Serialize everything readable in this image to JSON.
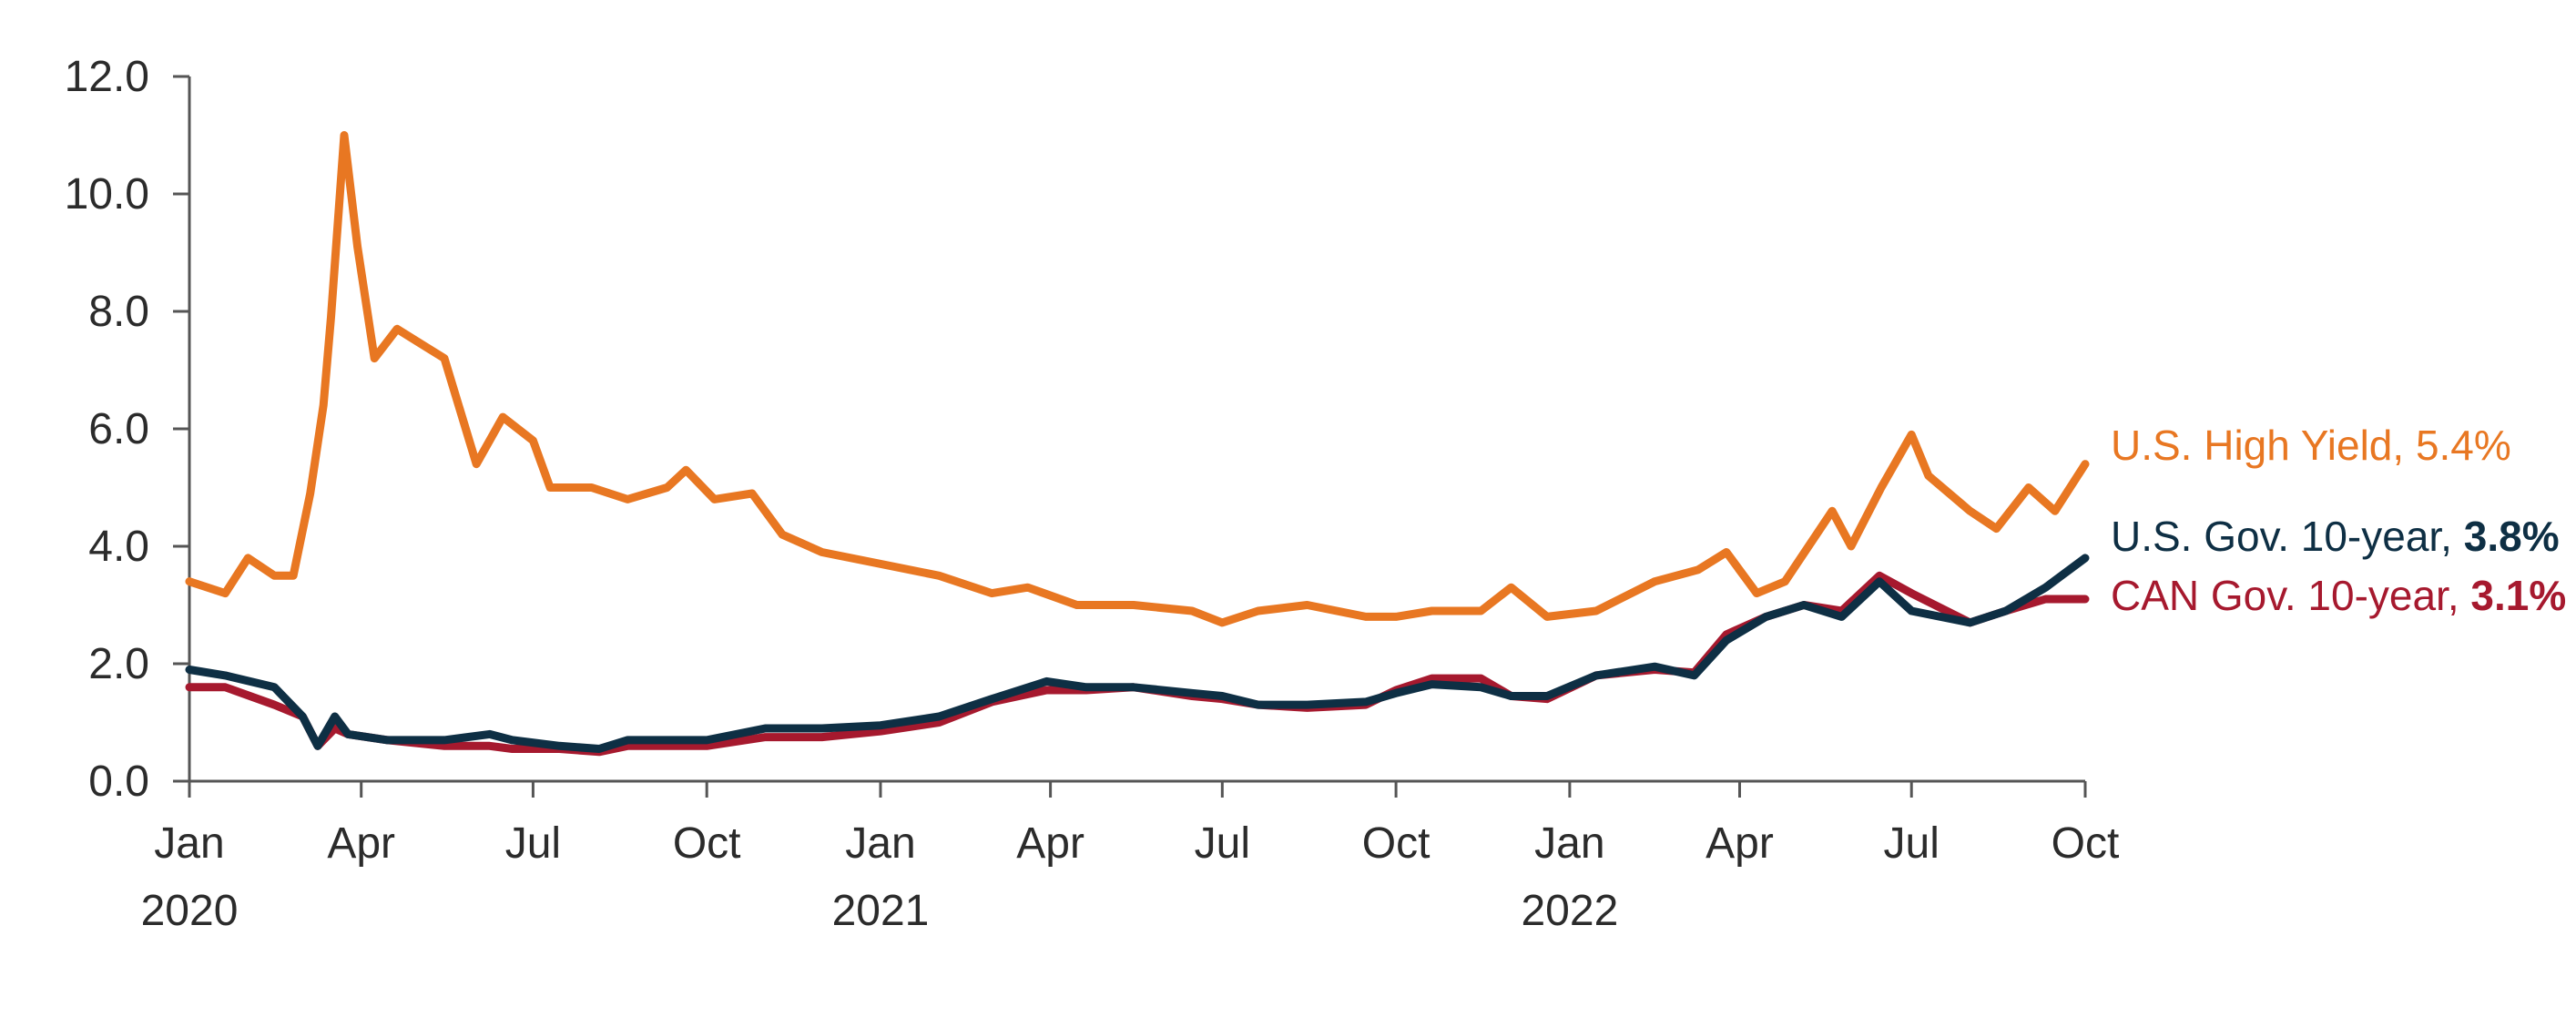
{
  "chart_data": {
    "type": "line",
    "title": "",
    "xlabel": "",
    "ylabel": "",
    "ylim": [
      0,
      12
    ],
    "y_ticks": [
      "0.0",
      "2.0",
      "4.0",
      "6.0",
      "8.0",
      "10.0",
      "12.0"
    ],
    "x_range": [
      "2020-01-01",
      "2022-10-01"
    ],
    "x_ticks": [
      {
        "date": "2020-01-01",
        "label": "Jan",
        "year": "2020"
      },
      {
        "date": "2020-04-01",
        "label": "Apr",
        "year": ""
      },
      {
        "date": "2020-07-01",
        "label": "Jul",
        "year": ""
      },
      {
        "date": "2020-10-01",
        "label": "Oct",
        "year": ""
      },
      {
        "date": "2021-01-01",
        "label": "Jan",
        "year": "2021"
      },
      {
        "date": "2021-04-01",
        "label": "Apr",
        "year": ""
      },
      {
        "date": "2021-07-01",
        "label": "Jul",
        "year": ""
      },
      {
        "date": "2021-10-01",
        "label": "Oct",
        "year": ""
      },
      {
        "date": "2022-01-01",
        "label": "Jan",
        "year": "2022"
      },
      {
        "date": "2022-04-01",
        "label": "Apr",
        "year": ""
      },
      {
        "date": "2022-07-01",
        "label": "Jul",
        "year": ""
      },
      {
        "date": "2022-10-01",
        "label": "Oct",
        "year": ""
      }
    ],
    "grid": false,
    "legend": "inline-right",
    "series": [
      {
        "name": "U.S. High Yield",
        "label_text": "U.S. High Yield, ",
        "last_value": "5.4%",
        "color": "#e87722",
        "points": [
          [
            "2020-01-01",
            3.4
          ],
          [
            "2020-01-20",
            3.2
          ],
          [
            "2020-02-01",
            3.8
          ],
          [
            "2020-02-15",
            3.5
          ],
          [
            "2020-02-25",
            3.5
          ],
          [
            "2020-03-05",
            4.9
          ],
          [
            "2020-03-12",
            6.4
          ],
          [
            "2020-03-16",
            7.9
          ],
          [
            "2020-03-23",
            11.0
          ],
          [
            "2020-03-30",
            9.1
          ],
          [
            "2020-04-08",
            7.2
          ],
          [
            "2020-04-20",
            7.7
          ],
          [
            "2020-05-05",
            7.4
          ],
          [
            "2020-05-15",
            7.2
          ],
          [
            "2020-06-01",
            5.4
          ],
          [
            "2020-06-15",
            6.2
          ],
          [
            "2020-07-01",
            5.8
          ],
          [
            "2020-07-10",
            5.0
          ],
          [
            "2020-08-01",
            5.0
          ],
          [
            "2020-08-20",
            4.8
          ],
          [
            "2020-09-10",
            5.0
          ],
          [
            "2020-09-20",
            5.3
          ],
          [
            "2020-10-05",
            4.8
          ],
          [
            "2020-10-25",
            4.9
          ],
          [
            "2020-11-10",
            4.2
          ],
          [
            "2020-12-01",
            3.9
          ],
          [
            "2021-01-01",
            3.7
          ],
          [
            "2021-02-01",
            3.5
          ],
          [
            "2021-03-01",
            3.2
          ],
          [
            "2021-03-20",
            3.3
          ],
          [
            "2021-04-15",
            3.0
          ],
          [
            "2021-05-15",
            3.0
          ],
          [
            "2021-06-15",
            2.9
          ],
          [
            "2021-07-01",
            2.7
          ],
          [
            "2021-07-20",
            2.9
          ],
          [
            "2021-08-15",
            3.0
          ],
          [
            "2021-09-15",
            2.8
          ],
          [
            "2021-10-01",
            2.8
          ],
          [
            "2021-10-20",
            2.9
          ],
          [
            "2021-11-15",
            2.9
          ],
          [
            "2021-12-01",
            3.3
          ],
          [
            "2021-12-20",
            2.8
          ],
          [
            "2022-01-15",
            2.9
          ],
          [
            "2022-02-15",
            3.4
          ],
          [
            "2022-03-10",
            3.6
          ],
          [
            "2022-03-25",
            3.9
          ],
          [
            "2022-04-10",
            3.2
          ],
          [
            "2022-04-25",
            3.4
          ],
          [
            "2022-05-20",
            4.6
          ],
          [
            "2022-05-30",
            4.0
          ],
          [
            "2022-06-15",
            5.0
          ],
          [
            "2022-07-01",
            5.9
          ],
          [
            "2022-07-10",
            5.2
          ],
          [
            "2022-08-01",
            4.6
          ],
          [
            "2022-08-15",
            4.3
          ],
          [
            "2022-09-01",
            5.0
          ],
          [
            "2022-09-15",
            4.6
          ],
          [
            "2022-10-01",
            5.4
          ]
        ]
      },
      {
        "name": "U.S. Gov. 10-year",
        "label_text": "U.S. Gov. 10-year, ",
        "last_value": "3.8%",
        "color": "#0e2f44",
        "points": [
          [
            "2020-01-01",
            1.9
          ],
          [
            "2020-01-20",
            1.8
          ],
          [
            "2020-02-15",
            1.6
          ],
          [
            "2020-03-01",
            1.1
          ],
          [
            "2020-03-09",
            0.6
          ],
          [
            "2020-03-18",
            1.1
          ],
          [
            "2020-03-25",
            0.8
          ],
          [
            "2020-04-15",
            0.7
          ],
          [
            "2020-05-15",
            0.7
          ],
          [
            "2020-06-08",
            0.8
          ],
          [
            "2020-06-20",
            0.7
          ],
          [
            "2020-07-15",
            0.6
          ],
          [
            "2020-08-05",
            0.55
          ],
          [
            "2020-08-20",
            0.7
          ],
          [
            "2020-09-15",
            0.7
          ],
          [
            "2020-10-01",
            0.7
          ],
          [
            "2020-11-01",
            0.9
          ],
          [
            "2020-12-01",
            0.9
          ],
          [
            "2021-01-01",
            0.95
          ],
          [
            "2021-02-01",
            1.1
          ],
          [
            "2021-03-01",
            1.4
          ],
          [
            "2021-03-30",
            1.7
          ],
          [
            "2021-04-20",
            1.6
          ],
          [
            "2021-05-15",
            1.6
          ],
          [
            "2021-06-15",
            1.5
          ],
          [
            "2021-07-01",
            1.45
          ],
          [
            "2021-07-20",
            1.3
          ],
          [
            "2021-08-15",
            1.3
          ],
          [
            "2021-09-15",
            1.35
          ],
          [
            "2021-10-01",
            1.5
          ],
          [
            "2021-10-20",
            1.65
          ],
          [
            "2021-11-15",
            1.6
          ],
          [
            "2021-12-01",
            1.45
          ],
          [
            "2021-12-20",
            1.45
          ],
          [
            "2022-01-15",
            1.8
          ],
          [
            "2022-02-15",
            1.95
          ],
          [
            "2022-03-08",
            1.8
          ],
          [
            "2022-03-25",
            2.4
          ],
          [
            "2022-04-15",
            2.8
          ],
          [
            "2022-05-05",
            3.0
          ],
          [
            "2022-05-25",
            2.8
          ],
          [
            "2022-06-14",
            3.4
          ],
          [
            "2022-07-01",
            2.9
          ],
          [
            "2022-08-01",
            2.7
          ],
          [
            "2022-08-20",
            2.9
          ],
          [
            "2022-09-10",
            3.3
          ],
          [
            "2022-10-01",
            3.8
          ]
        ]
      },
      {
        "name": "CAN Gov. 10-year",
        "label_text": "CAN Gov. 10-year, ",
        "last_value": "3.1%",
        "color": "#a6192e",
        "points": [
          [
            "2020-01-01",
            1.6
          ],
          [
            "2020-01-20",
            1.6
          ],
          [
            "2020-02-15",
            1.3
          ],
          [
            "2020-03-01",
            1.1
          ],
          [
            "2020-03-09",
            0.6
          ],
          [
            "2020-03-18",
            0.9
          ],
          [
            "2020-03-25",
            0.8
          ],
          [
            "2020-04-15",
            0.7
          ],
          [
            "2020-05-15",
            0.6
          ],
          [
            "2020-06-08",
            0.6
          ],
          [
            "2020-06-20",
            0.55
          ],
          [
            "2020-07-15",
            0.55
          ],
          [
            "2020-08-05",
            0.5
          ],
          [
            "2020-08-20",
            0.6
          ],
          [
            "2020-09-15",
            0.6
          ],
          [
            "2020-10-01",
            0.6
          ],
          [
            "2020-11-01",
            0.75
          ],
          [
            "2020-12-01",
            0.75
          ],
          [
            "2021-01-01",
            0.85
          ],
          [
            "2021-02-01",
            1.0
          ],
          [
            "2021-03-01",
            1.35
          ],
          [
            "2021-03-30",
            1.55
          ],
          [
            "2021-04-20",
            1.55
          ],
          [
            "2021-05-15",
            1.6
          ],
          [
            "2021-06-15",
            1.45
          ],
          [
            "2021-07-01",
            1.4
          ],
          [
            "2021-07-20",
            1.3
          ],
          [
            "2021-08-15",
            1.25
          ],
          [
            "2021-09-15",
            1.3
          ],
          [
            "2021-10-01",
            1.55
          ],
          [
            "2021-10-20",
            1.75
          ],
          [
            "2021-11-15",
            1.75
          ],
          [
            "2021-12-01",
            1.45
          ],
          [
            "2021-12-20",
            1.4
          ],
          [
            "2022-01-15",
            1.8
          ],
          [
            "2022-02-15",
            1.9
          ],
          [
            "2022-03-08",
            1.85
          ],
          [
            "2022-03-25",
            2.5
          ],
          [
            "2022-04-15",
            2.8
          ],
          [
            "2022-05-05",
            3.0
          ],
          [
            "2022-05-25",
            2.9
          ],
          [
            "2022-06-14",
            3.5
          ],
          [
            "2022-07-01",
            3.2
          ],
          [
            "2022-08-01",
            2.7
          ],
          [
            "2022-08-20",
            2.9
          ],
          [
            "2022-09-10",
            3.1
          ],
          [
            "2022-10-01",
            3.1
          ]
        ]
      }
    ]
  }
}
